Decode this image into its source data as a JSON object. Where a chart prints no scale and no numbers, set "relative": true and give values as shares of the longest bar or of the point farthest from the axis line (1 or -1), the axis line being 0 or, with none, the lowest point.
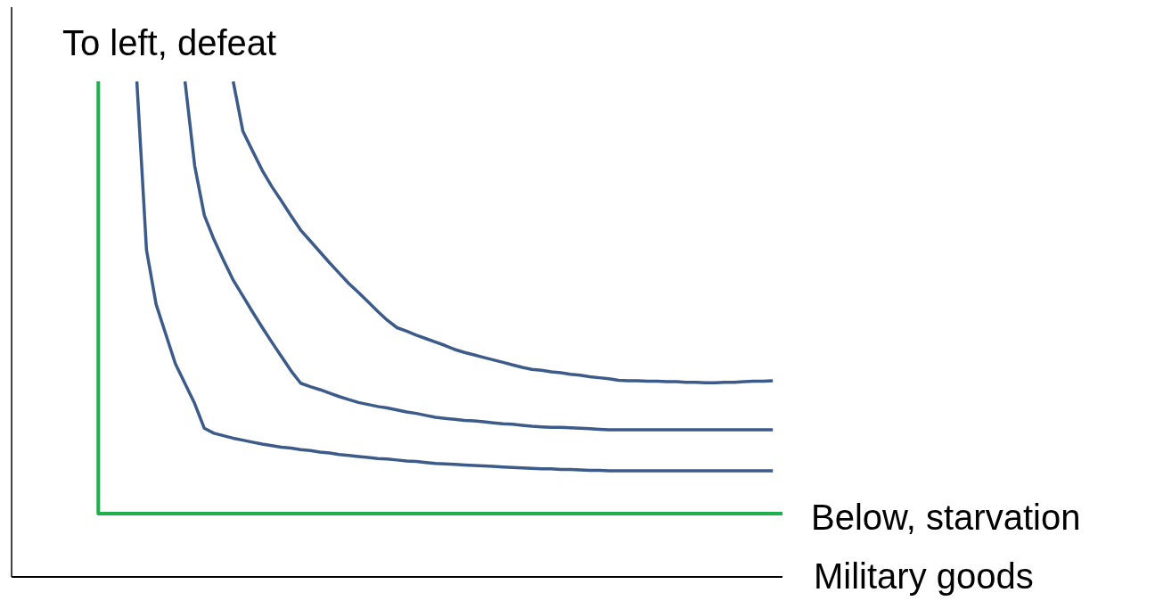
{
  "chart_data": {
    "type": "line",
    "relative": true,
    "xlabel": "Military goods",
    "annotations": [
      "To left, defeat",
      "Below, starvation"
    ],
    "categories": [
      null,
      null,
      null,
      null,
      null,
      null,
      null,
      null,
      null,
      null,
      null,
      null,
      null,
      null,
      null,
      null,
      null,
      null,
      null,
      null,
      null,
      null,
      null,
      null,
      null,
      null,
      null,
      null,
      null,
      null,
      null,
      null,
      null,
      null,
      null,
      null,
      null,
      null,
      null,
      null,
      null,
      null,
      null,
      null,
      null,
      null,
      null,
      null,
      null,
      null,
      null,
      null,
      null,
      null,
      null,
      null,
      null,
      null,
      null,
      null,
      null,
      null,
      null,
      null,
      null,
      null,
      null,
      null,
      null,
      null,
      null,
      null,
      null,
      null,
      null,
      null,
      null,
      null,
      null,
      null,
      null
    ],
    "series": [
      {
        "type": "step",
        "color": "#1db04b",
        "values": [
          null,
          null,
          null,
          null,
          null,
          null,
          null,
          null,
          null,
          1.0,
          0.128,
          0.128,
          0.128,
          0.128,
          0.128,
          0.128,
          0.128,
          0.128,
          0.128,
          0.128,
          0.128,
          0.128,
          0.128,
          0.128,
          0.128,
          0.128,
          0.128,
          0.128,
          0.128,
          0.128,
          0.128,
          0.128,
          0.128,
          0.128,
          0.128,
          0.128,
          0.128,
          0.128,
          0.128,
          0.128,
          0.128,
          0.128,
          0.128,
          0.128,
          0.128,
          0.128,
          0.128,
          0.128,
          0.128,
          0.128,
          0.128,
          0.128,
          0.128,
          0.128,
          0.128,
          0.128,
          0.128,
          0.128,
          0.128,
          0.128,
          0.128,
          0.128,
          0.128,
          0.128,
          0.128,
          0.128,
          0.128,
          0.128,
          0.128,
          0.128,
          0.128,
          0.128,
          0.128,
          0.128,
          0.128,
          0.128,
          0.128,
          0.128,
          0.128,
          0.128,
          0.128
        ]
      },
      {
        "color": "#3c5a8a",
        "values": [
          null,
          null,
          null,
          null,
          null,
          null,
          null,
          null,
          null,
          null,
          null,
          null,
          null,
          1.0,
          0.66,
          0.55,
          0.49,
          0.43,
          0.39,
          0.35,
          0.3,
          0.29,
          0.285,
          0.28,
          0.276,
          0.272,
          0.268,
          0.265,
          0.262,
          0.26,
          0.257,
          0.255,
          0.252,
          0.25,
          0.247,
          0.245,
          0.243,
          0.241,
          0.239,
          0.238,
          0.236,
          0.234,
          0.233,
          0.231,
          0.229,
          0.228,
          0.227,
          0.226,
          0.225,
          0.224,
          0.223,
          0.222,
          0.221,
          0.22,
          0.219,
          0.218,
          0.218,
          0.217,
          0.217,
          0.216,
          0.215,
          0.215,
          0.214,
          0.214,
          0.214,
          0.214,
          0.214,
          0.214,
          0.214,
          0.214,
          0.214,
          0.214,
          0.214,
          0.214,
          0.214,
          0.214,
          0.214,
          0.214,
          0.214,
          0.214,
          null
        ]
      },
      {
        "color": "#3c5a8a",
        "values": [
          null,
          null,
          null,
          null,
          null,
          null,
          null,
          null,
          null,
          null,
          null,
          null,
          null,
          null,
          null,
          null,
          null,
          null,
          1.0,
          0.83,
          0.73,
          0.681,
          0.639,
          0.599,
          0.567,
          0.535,
          0.504,
          0.474,
          0.445,
          0.416,
          0.391,
          0.384,
          0.378,
          0.371,
          0.364,
          0.358,
          0.352,
          0.348,
          0.344,
          0.341,
          0.337,
          0.333,
          0.33,
          0.326,
          0.322,
          0.32,
          0.318,
          0.316,
          0.315,
          0.313,
          0.311,
          0.309,
          0.308,
          0.306,
          0.304,
          0.303,
          0.302,
          0.302,
          0.301,
          0.3,
          0.299,
          0.298,
          0.297,
          0.297,
          0.297,
          0.297,
          0.297,
          0.297,
          0.297,
          0.297,
          0.297,
          0.297,
          0.297,
          0.297,
          0.297,
          0.297,
          0.297,
          0.297,
          0.297,
          0.297,
          null
        ]
      },
      {
        "color": "#3c5a8a",
        "values": [
          null,
          null,
          null,
          null,
          null,
          null,
          null,
          null,
          null,
          null,
          null,
          null,
          null,
          null,
          null,
          null,
          null,
          null,
          null,
          null,
          null,
          null,
          null,
          1.0,
          0.9,
          0.86,
          0.821,
          0.788,
          0.759,
          0.729,
          0.7,
          0.678,
          0.656,
          0.634,
          0.613,
          0.592,
          0.574,
          0.555,
          0.536,
          0.518,
          0.503,
          0.496,
          0.488,
          0.481,
          0.474,
          0.467,
          0.459,
          0.453,
          0.448,
          0.443,
          0.438,
          0.433,
          0.428,
          0.423,
          0.419,
          0.417,
          0.414,
          0.412,
          0.409,
          0.407,
          0.404,
          0.402,
          0.4,
          0.397,
          0.396,
          0.396,
          0.395,
          0.395,
          0.394,
          0.394,
          0.393,
          0.393,
          0.392,
          0.392,
          0.393,
          0.393,
          0.394,
          0.395,
          0.395,
          0.396,
          null
        ]
      }
    ]
  }
}
